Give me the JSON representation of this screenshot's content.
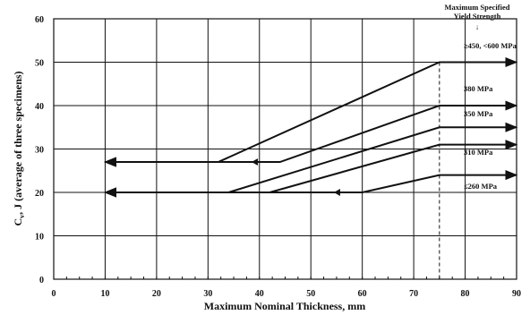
{
  "chart_data": {
    "type": "line",
    "xlabel": "Maximum Nominal Thickness, mm",
    "ylabel_main": "C",
    "ylabel_sub": "v",
    "ylabel_rest": ", J (average of three specimens)",
    "xlim": [
      0,
      90
    ],
    "ylim": [
      0,
      60
    ],
    "xticks": [
      0,
      10,
      20,
      30,
      40,
      50,
      60,
      70,
      80,
      90
    ],
    "yticks": [
      0,
      10,
      20,
      30,
      40,
      50,
      60
    ],
    "grid": true,
    "reference_line": {
      "x": 75,
      "style": "dashed"
    },
    "annotation_header": [
      "Maximum Specified",
      "Yield Strength"
    ],
    "series": [
      {
        "label": "≥450, <600 MPa",
        "points": [
          [
            10,
            27
          ],
          [
            32,
            27
          ],
          [
            75,
            50
          ],
          [
            90,
            50
          ]
        ],
        "arrow_left_at": 39,
        "arrow_right": true
      },
      {
        "label": "380 MPa",
        "points": [
          [
            10,
            27
          ],
          [
            44,
            27
          ],
          [
            75,
            40
          ],
          [
            90,
            40
          ]
        ],
        "arrow_left_at": null,
        "arrow_right": true
      },
      {
        "label": "350 MPa",
        "points": [
          [
            10,
            20
          ],
          [
            34,
            20
          ],
          [
            75,
            35
          ],
          [
            90,
            35
          ]
        ],
        "arrow_left_at": null,
        "arrow_right": true
      },
      {
        "label": "310 MPa",
        "points": [
          [
            42,
            20
          ],
          [
            75,
            31
          ],
          [
            90,
            31
          ]
        ],
        "arrow_left_at": 42,
        "arrow_right": true
      },
      {
        "label": "≤260 MPa",
        "points": [
          [
            10,
            20
          ],
          [
            60,
            20
          ],
          [
            75,
            24
          ],
          [
            90,
            24
          ]
        ],
        "arrow_left_at": 55,
        "arrow_right": true
      }
    ]
  }
}
